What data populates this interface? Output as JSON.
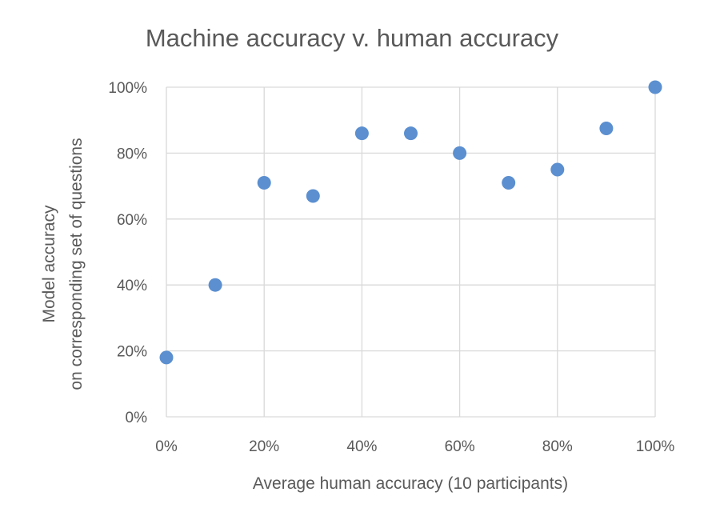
{
  "chart_data": {
    "type": "scatter",
    "title": "Machine accuracy v. human accuracy",
    "xlabel": "Average human accuracy (10 participants)",
    "ylabel_lines": [
      "Model accuracy",
      "on corresponding set of questions"
    ],
    "xlim": [
      0,
      1
    ],
    "ylim": [
      0,
      1
    ],
    "x_ticks": [
      {
        "value": 0,
        "label": "0%"
      },
      {
        "value": 0.2,
        "label": "20%"
      },
      {
        "value": 0.4,
        "label": "40%"
      },
      {
        "value": 0.6,
        "label": "60%"
      },
      {
        "value": 0.8,
        "label": "80%"
      },
      {
        "value": 1.0,
        "label": "100%"
      }
    ],
    "y_ticks": [
      {
        "value": 0,
        "label": "0%"
      },
      {
        "value": 0.2,
        "label": "20%"
      },
      {
        "value": 0.4,
        "label": "40%"
      },
      {
        "value": 0.6,
        "label": "60%"
      },
      {
        "value": 0.8,
        "label": "80%"
      },
      {
        "value": 1.0,
        "label": "100%"
      }
    ],
    "grid": true,
    "legend": "none",
    "marker_color": "#5b8fd0",
    "points": [
      {
        "x": 0.0,
        "y": 0.18
      },
      {
        "x": 0.1,
        "y": 0.4
      },
      {
        "x": 0.2,
        "y": 0.71
      },
      {
        "x": 0.3,
        "y": 0.67
      },
      {
        "x": 0.4,
        "y": 0.86
      },
      {
        "x": 0.5,
        "y": 0.86
      },
      {
        "x": 0.6,
        "y": 0.8
      },
      {
        "x": 0.7,
        "y": 0.71
      },
      {
        "x": 0.8,
        "y": 0.75
      },
      {
        "x": 0.9,
        "y": 0.875
      },
      {
        "x": 1.0,
        "y": 1.0
      }
    ]
  }
}
